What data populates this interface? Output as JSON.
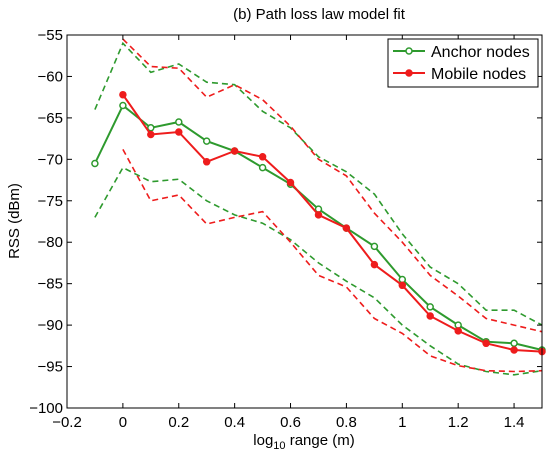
{
  "chart_data": {
    "type": "line",
    "title": "(b) Path loss law model fit",
    "xlabel": {
      "prefix": "log",
      "sub": "10",
      "suffix": " range (m)"
    },
    "ylabel": "RSS (dBm)",
    "xlim": [
      -0.2,
      1.5
    ],
    "ylim": [
      -100,
      -55
    ],
    "x_ticks": [
      -0.2,
      0,
      0.2,
      0.4,
      0.6,
      0.8,
      1,
      1.2,
      1.4
    ],
    "x_tick_labels": [
      "−0.2",
      "0",
      "0.2",
      "0.4",
      "0.6",
      "0.8",
      "1",
      "1.2",
      "1.4"
    ],
    "y_ticks": [
      -100,
      -95,
      -90,
      -85,
      -80,
      -75,
      -70,
      -65,
      -60,
      -55
    ],
    "y_tick_labels": [
      "−100",
      "−95",
      "−90",
      "−85",
      "−80",
      "−75",
      "−70",
      "−65",
      "−60",
      "−55"
    ],
    "grid": false,
    "legend_position": "top-right",
    "series": [
      {
        "name": "Anchor nodes",
        "color": "#2e9a2e",
        "marker": "open-circle",
        "x": [
          -0.1,
          0,
          0.1,
          0.2,
          0.3,
          0.4,
          0.5,
          0.6,
          0.7,
          0.8,
          0.9,
          1.0,
          1.1,
          1.2,
          1.3,
          1.4,
          1.5
        ],
        "values": [
          -70.5,
          -63.5,
          -66.2,
          -65.5,
          -67.8,
          -69.0,
          -71.0,
          -73.0,
          -76.0,
          -78.3,
          -80.5,
          -84.5,
          -87.8,
          -90.0,
          -92.0,
          -92.2,
          -93.0
        ]
      },
      {
        "name": "Mobile nodes",
        "color": "#ee1c1c",
        "marker": "filled-circle",
        "x": [
          0,
          0.1,
          0.2,
          0.3,
          0.4,
          0.5,
          0.6,
          0.7,
          0.8,
          0.9,
          1.0,
          1.1,
          1.2,
          1.3,
          1.4,
          1.5
        ],
        "values": [
          -62.2,
          -67.0,
          -66.7,
          -70.3,
          -69.0,
          -69.7,
          -72.8,
          -76.7,
          -78.3,
          -82.7,
          -85.2,
          -88.9,
          -90.7,
          -92.2,
          -93.0,
          -93.2
        ]
      }
    ],
    "bands": [
      {
        "color": "#2e9a2e",
        "x": [
          -0.1,
          0,
          0.1,
          0.2,
          0.3,
          0.4,
          0.5,
          0.6,
          0.7,
          0.8,
          0.9,
          1.0,
          1.1,
          1.2,
          1.3,
          1.4,
          1.5
        ],
        "upper": [
          -64.0,
          -56.0,
          -59.5,
          -58.5,
          -60.7,
          -61.0,
          -64.2,
          -66.2,
          -69.7,
          -71.5,
          -74.2,
          -79.0,
          -83.0,
          -85.0,
          -88.2,
          -88.2,
          -90.0
        ],
        "lower": [
          -77.0,
          -71.0,
          -72.7,
          -72.4,
          -75.0,
          -76.7,
          -77.7,
          -79.7,
          -82.5,
          -84.7,
          -86.7,
          -90.0,
          -92.5,
          -94.7,
          -95.6,
          -96.0,
          -95.5
        ]
      },
      {
        "color": "#ee1c1c",
        "x": [
          0,
          0.1,
          0.2,
          0.3,
          0.4,
          0.5,
          0.6,
          0.7,
          0.8,
          0.9,
          1.0,
          1.1,
          1.2,
          1.3,
          1.4,
          1.5
        ],
        "upper": [
          -55.5,
          -58.8,
          -59.0,
          -62.5,
          -61.0,
          -62.8,
          -66.0,
          -70.0,
          -72.0,
          -76.5,
          -80.0,
          -84.0,
          -86.5,
          -89.2,
          -90.0,
          -90.8
        ],
        "lower": [
          -68.8,
          -75.0,
          -74.3,
          -77.8,
          -77.0,
          -76.3,
          -80.0,
          -84.0,
          -85.4,
          -89.2,
          -91.0,
          -93.7,
          -94.9,
          -95.5,
          -95.6,
          -95.5
        ]
      }
    ]
  }
}
